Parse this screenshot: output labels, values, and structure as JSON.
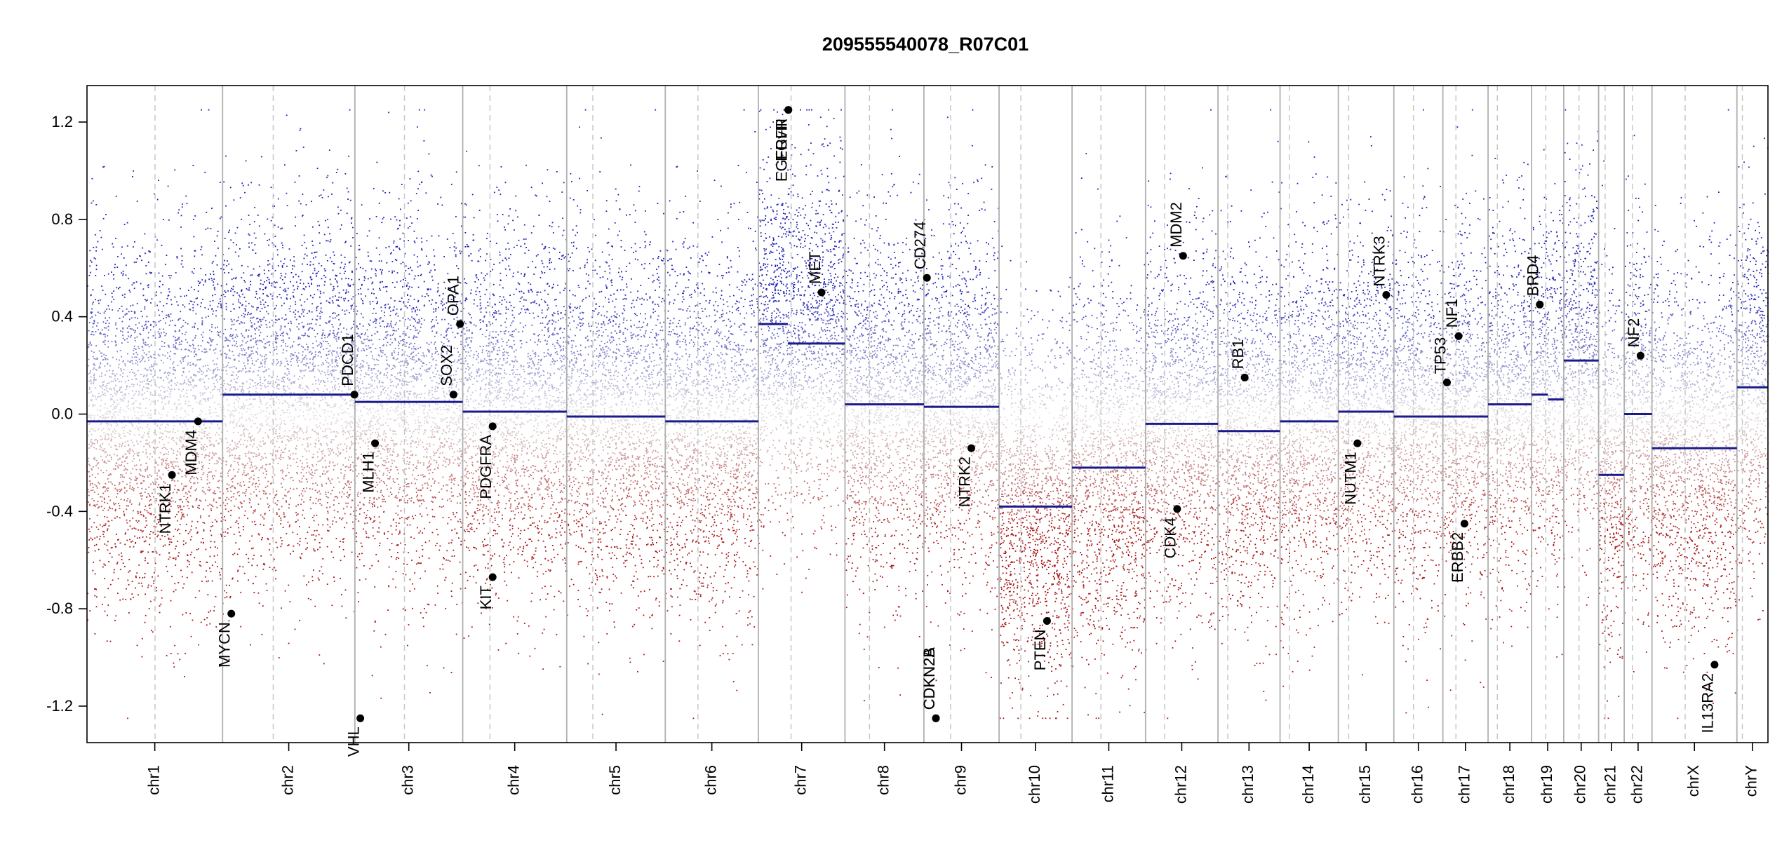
{
  "chart_data": {
    "type": "scatter",
    "title": "209555540078_R07C01",
    "xlabel": "",
    "ylabel": "",
    "ylim": [
      -1.35,
      1.35
    ],
    "yticks": [
      -1.2,
      -0.8,
      -0.4,
      0.0,
      0.4,
      0.8,
      1.2
    ],
    "ytick_labels": [
      "-1.2",
      "-0.8",
      "-0.4",
      "0.0",
      "0.4",
      "0.8",
      "1.2"
    ],
    "clip": [
      -1.25,
      1.25
    ],
    "grid": false,
    "colors": {
      "gain": "#1e22b4",
      "loss": "#a81414",
      "segment": "#1a1a8c",
      "gene": "#000000",
      "boundary": "#b0b0b0",
      "centromere": "#c8c8c8"
    },
    "chromosomes": [
      {
        "name": "chr1",
        "len": 249,
        "cen": 125,
        "segments": [
          {
            "s": 0,
            "e": 249,
            "v": -0.03
          }
        ]
      },
      {
        "name": "chr2",
        "len": 243,
        "cen": 93,
        "segments": [
          {
            "s": 0,
            "e": 243,
            "v": 0.08
          }
        ]
      },
      {
        "name": "chr3",
        "len": 198,
        "cen": 91,
        "segments": [
          {
            "s": 0,
            "e": 198,
            "v": 0.05
          }
        ]
      },
      {
        "name": "chr4",
        "len": 191,
        "cen": 50,
        "segments": [
          {
            "s": 0,
            "e": 191,
            "v": 0.01
          }
        ]
      },
      {
        "name": "chr5",
        "len": 181,
        "cen": 48,
        "segments": [
          {
            "s": 0,
            "e": 181,
            "v": -0.01
          }
        ]
      },
      {
        "name": "chr6",
        "len": 171,
        "cen": 60,
        "segments": [
          {
            "s": 0,
            "e": 171,
            "v": -0.03
          }
        ]
      },
      {
        "name": "chr7",
        "len": 159,
        "cen": 60,
        "segments": [
          {
            "s": 0,
            "e": 54,
            "v": 0.37
          },
          {
            "s": 54,
            "e": 159,
            "v": 0.29
          }
        ]
      },
      {
        "name": "chr8",
        "len": 145,
        "cen": 45,
        "segments": [
          {
            "s": 0,
            "e": 145,
            "v": 0.04
          }
        ]
      },
      {
        "name": "chr9",
        "len": 138,
        "cen": 49,
        "segments": [
          {
            "s": 0,
            "e": 138,
            "v": 0.03
          }
        ]
      },
      {
        "name": "chr10",
        "len": 134,
        "cen": 40,
        "segments": [
          {
            "s": 0,
            "e": 134,
            "v": -0.38
          }
        ]
      },
      {
        "name": "chr11",
        "len": 135,
        "cen": 53,
        "segments": [
          {
            "s": 0,
            "e": 135,
            "v": -0.22
          }
        ]
      },
      {
        "name": "chr12",
        "len": 133,
        "cen": 35,
        "segments": [
          {
            "s": 0,
            "e": 133,
            "v": -0.04
          }
        ]
      },
      {
        "name": "chr13",
        "len": 114,
        "cen": 18,
        "segments": [
          {
            "s": 0,
            "e": 114,
            "v": -0.07
          }
        ]
      },
      {
        "name": "chr14",
        "len": 107,
        "cen": 17,
        "segments": [
          {
            "s": 0,
            "e": 107,
            "v": -0.03
          }
        ]
      },
      {
        "name": "chr15",
        "len": 102,
        "cen": 19,
        "segments": [
          {
            "s": 0,
            "e": 102,
            "v": 0.01
          }
        ]
      },
      {
        "name": "chr16",
        "len": 90,
        "cen": 36,
        "segments": [
          {
            "s": 0,
            "e": 90,
            "v": -0.01
          }
        ]
      },
      {
        "name": "chr17",
        "len": 83,
        "cen": 24,
        "segments": [
          {
            "s": 0,
            "e": 83,
            "v": -0.01
          }
        ]
      },
      {
        "name": "chr18",
        "len": 80,
        "cen": 17,
        "segments": [
          {
            "s": 0,
            "e": 80,
            "v": 0.04
          }
        ]
      },
      {
        "name": "chr19",
        "len": 59,
        "cen": 26,
        "segments": [
          {
            "s": 0,
            "e": 30,
            "v": 0.08
          },
          {
            "s": 30,
            "e": 59,
            "v": 0.06
          }
        ]
      },
      {
        "name": "chr20",
        "len": 64,
        "cen": 28,
        "segments": [
          {
            "s": 0,
            "e": 64,
            "v": 0.22
          }
        ]
      },
      {
        "name": "chr21",
        "len": 47,
        "cen": 12,
        "segments": [
          {
            "s": 0,
            "e": 47,
            "v": -0.25
          }
        ]
      },
      {
        "name": "chr22",
        "len": 51,
        "cen": 15,
        "segments": [
          {
            "s": 0,
            "e": 51,
            "v": 0.0
          }
        ]
      },
      {
        "name": "chrX",
        "len": 156,
        "cen": 61,
        "segments": [
          {
            "s": 0,
            "e": 156,
            "v": -0.14
          }
        ]
      },
      {
        "name": "chrY",
        "len": 57,
        "cen": 10,
        "segments": [
          {
            "s": 0,
            "e": 57,
            "v": 0.11
          }
        ]
      }
    ],
    "genes": [
      {
        "name": "NTRK1",
        "chr": "chr1",
        "pos": 156,
        "v": -0.25
      },
      {
        "name": "MDM4",
        "chr": "chr1",
        "pos": 204,
        "v": -0.03
      },
      {
        "name": "MYCN",
        "chr": "chr2",
        "pos": 16,
        "v": -0.82
      },
      {
        "name": "PDCD1",
        "chr": "chr2",
        "pos": 242,
        "v": 0.08
      },
      {
        "name": "VHL",
        "chr": "chr3",
        "pos": 10,
        "v": -1.25
      },
      {
        "name": "MLH1",
        "chr": "chr3",
        "pos": 37,
        "v": -0.12
      },
      {
        "name": "SOX2",
        "chr": "chr3",
        "pos": 181,
        "v": 0.08
      },
      {
        "name": "OPA1",
        "chr": "chr3",
        "pos": 193,
        "v": 0.37
      },
      {
        "name": "PDGFRA",
        "chr": "chr4",
        "pos": 55,
        "v": -0.05
      },
      {
        "name": "KIT",
        "chr": "chr4",
        "pos": 55,
        "v": -0.67
      },
      {
        "name": "EGFR",
        "chr": "chr7",
        "pos": 55,
        "v": 1.25
      },
      {
        "name": "EGFRvIII",
        "chr": "chr7",
        "pos": 55,
        "v": 1.25
      },
      {
        "name": "MET",
        "chr": "chr7",
        "pos": 116,
        "v": 0.5
      },
      {
        "name": "CDKN2A",
        "chr": "chr9",
        "pos": 22,
        "v": -1.25
      },
      {
        "name": "CDKN2B",
        "chr": "chr9",
        "pos": 22,
        "v": -1.25
      },
      {
        "name": "CD274",
        "chr": "chr9",
        "pos": 5.5,
        "v": 0.56
      },
      {
        "name": "NTRK2",
        "chr": "chr9",
        "pos": 87,
        "v": -0.14
      },
      {
        "name": "PTEN",
        "chr": "chr10",
        "pos": 88,
        "v": -0.85
      },
      {
        "name": "CDK4",
        "chr": "chr12",
        "pos": 58,
        "v": -0.39
      },
      {
        "name": "MDM2",
        "chr": "chr12",
        "pos": 69,
        "v": 0.65
      },
      {
        "name": "RB1",
        "chr": "chr13",
        "pos": 49,
        "v": 0.15
      },
      {
        "name": "NUTM1",
        "chr": "chr15",
        "pos": 35,
        "v": -0.12
      },
      {
        "name": "NTRK3",
        "chr": "chr15",
        "pos": 88,
        "v": 0.49
      },
      {
        "name": "TP53",
        "chr": "chr17",
        "pos": 7.5,
        "v": 0.13
      },
      {
        "name": "NF1",
        "chr": "chr17",
        "pos": 29,
        "v": 0.32
      },
      {
        "name": "ERBB2",
        "chr": "chr17",
        "pos": 39.7,
        "v": -0.45
      },
      {
        "name": "BRD4",
        "chr": "chr19",
        "pos": 15,
        "v": 0.45
      },
      {
        "name": "NF2",
        "chr": "chr22",
        "pos": 30,
        "v": 0.24
      },
      {
        "name": "IL13RA2",
        "chr": "chrX",
        "pos": 115,
        "v": -1.03
      }
    ],
    "gene_labels": {
      "EGFR": {
        "text": "EGFR",
        "anchor": "end",
        "dir": "down"
      },
      "EGFRvIII": {
        "text": "EGFRvIII",
        "anchor": "end",
        "dir": "down"
      },
      "CDKN2A": {
        "text": "CDKN2A",
        "anchor": "start",
        "dir": "up"
      },
      "CDKN2B": {
        "text": "CDKN2B",
        "anchor": "start",
        "dir": "up"
      }
    }
  }
}
